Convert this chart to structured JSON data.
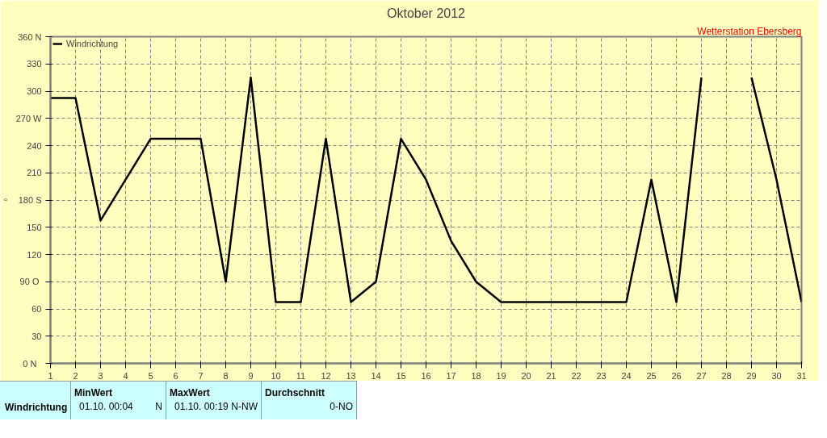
{
  "chart_data": {
    "type": "line",
    "title": "Oktober 2012",
    "ylabel": "°",
    "annotations": [
      "Wetterstation Ebersberg",
      "Windrichtung",
      "MinWert",
      "01.10.  00:04",
      "N",
      "MaxWert",
      "01.10.  00:19",
      "N-NW",
      "Durchschnitt",
      "0-NO"
    ],
    "x": [
      1,
      2,
      3,
      4,
      5,
      6,
      7,
      8,
      9,
      10,
      11,
      12,
      13,
      14,
      15,
      16,
      17,
      18,
      19,
      20,
      21,
      22,
      23,
      24,
      25,
      26,
      27,
      28,
      29,
      30,
      31
    ],
    "series": [
      {
        "name": "Windrichtung",
        "color": "#000000",
        "values": [
          292.5,
          292.5,
          157.5,
          202.5,
          247.5,
          247.5,
          247.5,
          90,
          315,
          67.5,
          67.5,
          247.5,
          67.5,
          90,
          247.5,
          202.5,
          135,
          90,
          67.5,
          67.5,
          67.5,
          67.5,
          67.5,
          67.5,
          202.5,
          67.5,
          315,
          null,
          315,
          202.5,
          67.5
        ]
      }
    ],
    "xlim": [
      1,
      31
    ],
    "xticks": [
      1,
      2,
      3,
      4,
      5,
      6,
      7,
      8,
      9,
      10,
      11,
      12,
      13,
      14,
      15,
      16,
      17,
      18,
      19,
      20,
      21,
      22,
      23,
      24,
      25,
      26,
      27,
      28,
      29,
      30,
      31
    ],
    "ylim": [
      0,
      360
    ],
    "yticks": [
      {
        "value": 0,
        "label": "0   N"
      },
      30,
      60,
      {
        "value": 90,
        "label": "90  O"
      },
      120,
      150,
      {
        "value": 180,
        "label": "180 S"
      },
      210,
      240,
      {
        "value": 270,
        "label": "270 W"
      },
      300,
      330,
      {
        "value": 360,
        "label": "360 N"
      }
    ],
    "grid": true,
    "legend": "top left",
    "line_style": "solid",
    "marker": "none"
  }
}
